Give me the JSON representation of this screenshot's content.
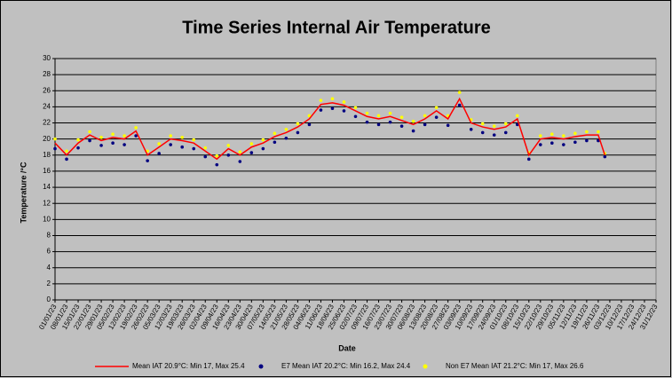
{
  "chart_data": {
    "type": "line",
    "title": "Time Series Internal Air Temperature",
    "xlabel": "Date",
    "ylabel": "Temperature /°C",
    "xlim": [
      "01/01/23",
      "31/12/23"
    ],
    "xticks": [
      "01/01/23",
      "08/01/23",
      "15/01/23",
      "22/01/23",
      "29/01/23",
      "05/02/23",
      "12/02/23",
      "19/02/23",
      "26/02/23",
      "05/03/23",
      "12/03/23",
      "19/03/23",
      "26/03/23",
      "02/04/23",
      "09/04/23",
      "16/04/23",
      "23/04/23",
      "30/04/23",
      "07/05/23",
      "14/05/23",
      "21/05/23",
      "28/05/23",
      "04/06/23",
      "11/06/23",
      "18/06/23",
      "25/06/23",
      "02/07/23",
      "09/07/23",
      "16/07/23",
      "23/07/23",
      "30/07/23",
      "06/08/23",
      "13/08/23",
      "20/08/23",
      "27/08/23",
      "03/09/23",
      "10/09/23",
      "17/09/23",
      "24/09/23",
      "01/10/23",
      "08/10/23",
      "15/10/23",
      "22/10/23",
      "29/10/23",
      "05/11/23",
      "12/11/23",
      "19/11/23",
      "26/11/23",
      "03/12/23",
      "10/12/23",
      "17/12/23",
      "24/12/23",
      "31/12/23"
    ],
    "ylim": [
      0,
      30
    ],
    "yticks": [
      0,
      2,
      4,
      6,
      8,
      10,
      12,
      14,
      16,
      18,
      20,
      22,
      24,
      26,
      28,
      30
    ],
    "grid": true,
    "x": [
      "01/01/23",
      "08/01/23",
      "15/01/23",
      "22/01/23",
      "29/01/23",
      "05/02/23",
      "12/02/23",
      "19/02/23",
      "26/02/23",
      "05/03/23",
      "12/03/23",
      "19/03/23",
      "26/03/23",
      "02/04/23",
      "09/04/23",
      "16/04/23",
      "23/04/23",
      "30/04/23",
      "07/05/23",
      "14/05/23",
      "21/05/23",
      "28/05/23",
      "04/06/23",
      "11/06/23",
      "18/06/23",
      "25/06/23",
      "02/07/23",
      "09/07/23",
      "16/07/23",
      "23/07/23",
      "30/07/23",
      "06/08/23",
      "13/08/23",
      "20/08/23",
      "27/08/23",
      "03/09/23",
      "10/09/23",
      "17/09/23",
      "24/09/23",
      "01/10/23",
      "08/10/23",
      "15/10/23",
      "22/10/23",
      "29/10/23",
      "05/11/23",
      "12/11/23",
      "19/11/23",
      "26/11/23",
      "30/11/23"
    ],
    "series": [
      {
        "name": "Mean IAT 20.9°C: Min 17, Max 25.4",
        "type": "line",
        "color": "#ff0000",
        "values": [
          19.5,
          18,
          19.5,
          20.5,
          19.8,
          20.2,
          20,
          21,
          18,
          19,
          20,
          19.8,
          19.5,
          18.5,
          17.5,
          18.8,
          18,
          19,
          19.5,
          20.3,
          20.8,
          21.5,
          22.5,
          24.3,
          24.5,
          24.2,
          23.5,
          22.8,
          22.5,
          22.8,
          22.3,
          21.8,
          22.5,
          23.5,
          22.5,
          25,
          22,
          21.5,
          21.2,
          21.5,
          22.5,
          18,
          20,
          20.2,
          20,
          20.3,
          20.5,
          20.5,
          18
        ]
      },
      {
        "name": "E7 Mean IAT 20.2°C: Min 16.2, Max 24.4",
        "type": "scatter",
        "color": "#000080",
        "values": [
          18.8,
          17.5,
          18.9,
          19.8,
          19.2,
          19.5,
          19.3,
          20.4,
          17.3,
          18.2,
          19.3,
          19,
          18.8,
          17.8,
          16.8,
          18,
          17.2,
          18.3,
          18.8,
          19.6,
          20.1,
          20.8,
          21.8,
          23.6,
          23.8,
          23.5,
          22.8,
          22.1,
          21.8,
          22.1,
          21.6,
          21,
          21.8,
          22.7,
          21.7,
          24.2,
          21.2,
          20.8,
          20.5,
          20.8,
          21.8,
          17.5,
          19.3,
          19.5,
          19.3,
          19.6,
          19.8,
          19.8,
          17.8
        ]
      },
      {
        "name": "Non E7 Mean IAT 21.2°C: Min 17, Max 26.6",
        "type": "scatter",
        "color": "#ffff00",
        "values": [
          20,
          18.5,
          19.9,
          20.9,
          20.2,
          20.6,
          20.4,
          21.4,
          18.5,
          19.4,
          20.4,
          20.2,
          19.9,
          18.9,
          17.9,
          19.2,
          18.4,
          19.4,
          19.9,
          20.7,
          21.2,
          21.9,
          22.9,
          24.8,
          25,
          24.6,
          23.9,
          23.2,
          22.9,
          23.2,
          22.7,
          22.2,
          22.9,
          23.9,
          22.9,
          25.8,
          22.4,
          21.9,
          21.6,
          21.9,
          22.9,
          18.3,
          20.4,
          20.6,
          20.4,
          20.7,
          20.9,
          20.9,
          18.2
        ]
      }
    ]
  }
}
